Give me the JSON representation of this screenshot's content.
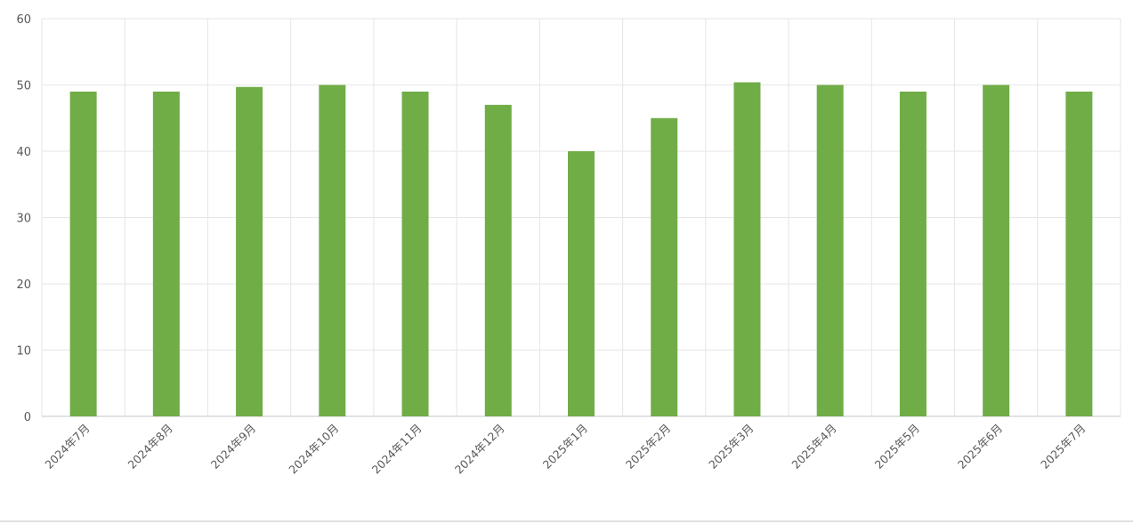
{
  "chart_data": {
    "type": "bar",
    "title": "",
    "xlabel": "",
    "ylabel": "",
    "categories": [
      "2024年7月",
      "2024年8月",
      "2024年9月",
      "2024年10月",
      "2024年11月",
      "2024年12月",
      "2025年1月",
      "2025年2月",
      "2025年3月",
      "2025年4月",
      "2025年5月",
      "2025年6月",
      "2025年7月"
    ],
    "values": [
      49,
      49,
      49.7,
      50,
      49,
      47,
      40,
      45,
      50.4,
      50,
      49,
      50,
      49
    ],
    "ylim": [
      0,
      60
    ],
    "yticks": [
      0,
      10,
      20,
      30,
      40,
      50,
      60
    ],
    "grid": true,
    "legend": "none",
    "colors": {
      "bar": "#70AD47",
      "grid": "#E6E6E6",
      "text": "#595959"
    }
  }
}
